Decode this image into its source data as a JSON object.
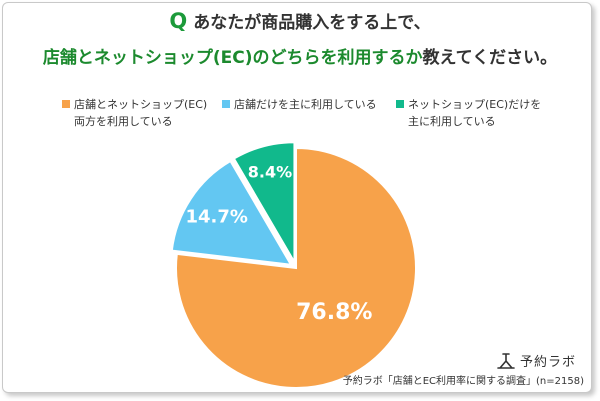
{
  "question": {
    "mark": "Q",
    "line1": "あなたが商品購入をする上で、",
    "line2_main": "店舗とネットショップ(EC)のどちらを利用するか",
    "line2_suffix": "教えてください。"
  },
  "legend": [
    {
      "line1": "店舗とネットショップ(EC)",
      "line2": "両方を利用している",
      "color": "#f7a24a"
    },
    {
      "line1": "店舗だけを主に利用している",
      "line2": "",
      "color": "#63c7f2"
    },
    {
      "line1": "ネットショップ(EC)だけを",
      "line2": "主に利用している",
      "color": "#11b98c"
    }
  ],
  "chart_data": {
    "type": "pie",
    "categories": [
      "店舗とネットショップ(EC)両方を利用している",
      "店舗だけを主に利用している",
      "ネットショップ(EC)だけを主に利用している"
    ],
    "values": [
      76.8,
      14.7,
      8.4
    ],
    "labels": [
      "76.8%",
      "14.7%",
      "8.4%"
    ],
    "colors": [
      "#f7a24a",
      "#63c7f2",
      "#11b98c"
    ]
  },
  "brand": {
    "name": "予約ラボ"
  },
  "source": "予約ラボ「店舗とEC利用率に関する調査」(n=2158)"
}
